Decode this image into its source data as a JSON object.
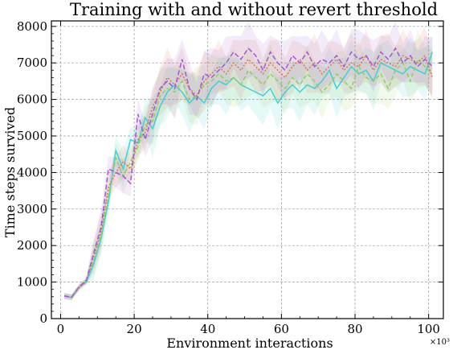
{
  "chart_data": {
    "type": "line",
    "title": "Training with and without revert threshold",
    "xlabel": "Environment interactions",
    "ylabel": "Time steps survived",
    "x_multiplier": "×10³",
    "xlim": [
      -2.5,
      104
    ],
    "ylim": [
      0,
      8150
    ],
    "xticks": [
      0,
      20,
      40,
      60,
      80,
      100
    ],
    "yticks": [
      0,
      1000,
      2000,
      3000,
      4000,
      5000,
      6000,
      7000,
      8000
    ],
    "grid": true,
    "x": [
      1,
      3,
      5,
      7,
      9,
      11,
      13,
      15,
      17,
      19,
      21,
      23,
      25,
      27,
      29,
      31,
      33,
      35,
      37,
      39,
      41,
      43,
      45,
      47,
      49,
      51,
      53,
      55,
      57,
      59,
      61,
      63,
      65,
      67,
      69,
      71,
      73,
      75,
      77,
      79,
      81,
      83,
      85,
      87,
      89,
      91,
      93,
      95,
      97,
      99,
      101
    ],
    "series": [
      {
        "color": "#3fd0d4",
        "dash": "solid",
        "values": [
          620,
          580,
          850,
          1000,
          1500,
          2200,
          3200,
          4600,
          4100,
          4900,
          4800,
          5500,
          5200,
          5800,
          6200,
          6400,
          6200,
          5900,
          6100,
          5900,
          6300,
          6500,
          6400,
          6600,
          6400,
          6300,
          6200,
          6100,
          6300,
          5900,
          6200,
          6400,
          6200,
          6400,
          6300,
          6500,
          6800,
          6300,
          6600,
          6900,
          6700,
          6800,
          6500,
          7000,
          6900,
          6800,
          6700,
          6900,
          6800,
          6700,
          7300
        ]
      },
      {
        "color": "#8ad35a",
        "dash": "5,3",
        "values": [
          620,
          580,
          840,
          1050,
          1600,
          2300,
          3400,
          4400,
          3900,
          4300,
          4700,
          5300,
          5400,
          6100,
          6300,
          6200,
          6500,
          6000,
          6100,
          6400,
          6500,
          6700,
          6500,
          6600,
          6400,
          6800,
          6600,
          6400,
          6700,
          6500,
          6300,
          6600,
          6400,
          6700,
          6500,
          6200,
          6400,
          6700,
          6500,
          6300,
          6900,
          6600,
          6500,
          6700,
          6300,
          6800,
          7000,
          6500,
          7100,
          6900,
          6700
        ]
      },
      {
        "color": "#e0735a",
        "dash": "2,2",
        "values": [
          620,
          580,
          860,
          1020,
          1700,
          2400,
          3600,
          4000,
          4300,
          4100,
          4900,
          5100,
          5800,
          6200,
          6600,
          6400,
          6700,
          6300,
          6100,
          6500,
          6700,
          6900,
          6700,
          7000,
          6800,
          7100,
          6900,
          6700,
          7000,
          6800,
          6600,
          6900,
          7100,
          6800,
          7000,
          6700,
          6900,
          7100,
          6800,
          7000,
          6900,
          7200,
          6800,
          7100,
          7000,
          6900,
          7200,
          7100,
          7000,
          7200,
          6600
        ]
      },
      {
        "color": "#a05ad6",
        "dash": "6,3",
        "values": [
          620,
          590,
          870,
          1050,
          1800,
          2500,
          4100,
          4000,
          3900,
          3700,
          5600,
          4900,
          5600,
          6300,
          6500,
          6300,
          7100,
          6300,
          6000,
          6700,
          6600,
          6800,
          7000,
          7300,
          7100,
          7400,
          7200,
          6800,
          7300,
          7000,
          6800,
          7200,
          7000,
          7300,
          6900,
          7100,
          7000,
          7200,
          6900,
          7300,
          7100,
          7200,
          6900,
          7300,
          7100,
          7400,
          7000,
          7200,
          6900,
          7100,
          6900
        ]
      }
    ]
  }
}
